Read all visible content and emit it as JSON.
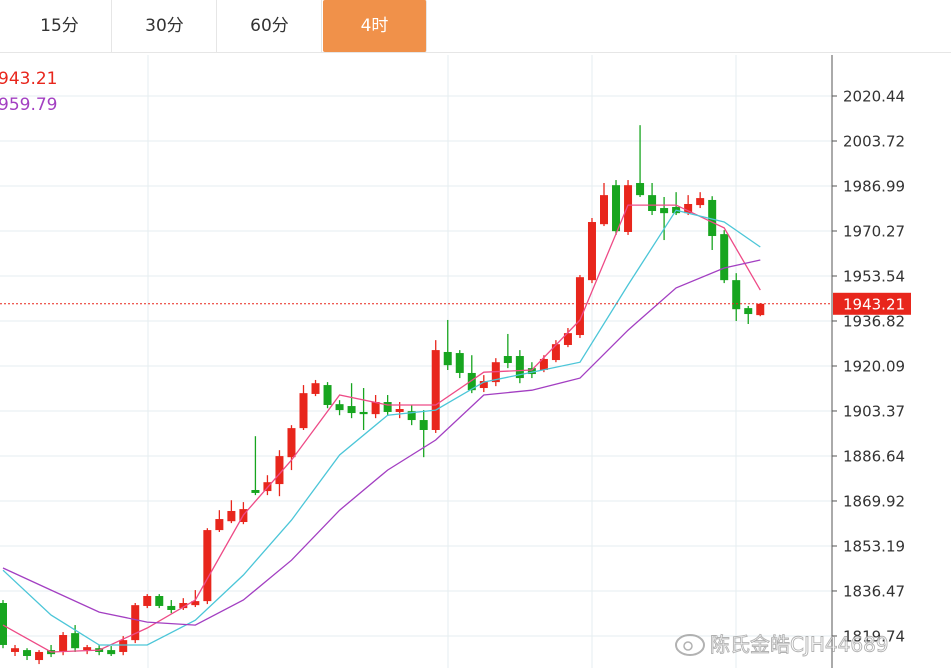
{
  "tabs": [
    {
      "label": "15分"
    },
    {
      "label": "30分"
    },
    {
      "label": "60分"
    },
    {
      "label": "4时",
      "active": true
    }
  ],
  "chart_data": {
    "type": "candlestick",
    "legend_texts": [
      {
        "text": "943.21",
        "color": "#e8261c"
      },
      {
        "text": "959.79",
        "color": "#a33fc2"
      }
    ],
    "up_color": "#e8261c",
    "down_color": "#17a51f",
    "open": [
      1832.0,
      1813.8,
      1814.5,
      1810.8,
      1814.5,
      1813.8,
      1820.8,
      1814.5,
      1815.2,
      1814.5,
      1813.8,
      1818.2,
      1830.9,
      1834.6,
      1830.9,
      1830.1,
      1831.2,
      1832.7,
      1859.1,
      1862.4,
      1862.1,
      1874.0,
      1873.6,
      1876.2,
      1886.2,
      1897.0,
      1909.7,
      1913.0,
      1905.9,
      1905.2,
      1903.0,
      1902.2,
      1906.7,
      1903.0,
      1903.3,
      1900.0,
      1896.3,
      1925.3,
      1924.9,
      1917.5,
      1911.9,
      1914.1,
      1923.8,
      1923.8,
      1919.3,
      1918.6,
      1922.3,
      1927.9,
      1931.6,
      1952.0,
      1972.8,
      1987.3,
      1969.9,
      1988.1,
      1983.6,
      1978.8,
      1979.2,
      1976.9,
      1979.9,
      1981.8,
      1969.1,
      1952.0,
      1941.6,
      1939.0
    ],
    "high": [
      1833.1,
      1816.4,
      1815.2,
      1814.5,
      1816.4,
      1821.2,
      1823.8,
      1816.4,
      1816.4,
      1816.0,
      1819.7,
      1832.0,
      1835.3,
      1835.3,
      1833.1,
      1833.8,
      1836.8,
      1859.8,
      1866.5,
      1870.2,
      1869.5,
      1894.0,
      1879.5,
      1888.8,
      1898.1,
      1913.0,
      1914.9,
      1914.1,
      1907.4,
      1913.7,
      1911.9,
      1909.3,
      1909.3,
      1906.7,
      1905.6,
      1903.7,
      1929.7,
      1937.2,
      1926.0,
      1924.1,
      1916.7,
      1923.0,
      1932.0,
      1926.0,
      1921.5,
      1924.1,
      1929.7,
      1934.2,
      1953.9,
      1975.1,
      1988.1,
      1989.2,
      1989.2,
      2009.6,
      1988.1,
      1982.9,
      1984.7,
      1983.6,
      1984.7,
      1983.2,
      1970.6,
      1954.6,
      1942.4,
      1943.5
    ],
    "low": [
      1815.2,
      1812.3,
      1810.8,
      1809.3,
      1811.9,
      1812.6,
      1813.8,
      1813.0,
      1812.6,
      1812.3,
      1812.6,
      1817.1,
      1830.1,
      1830.1,
      1828.2,
      1829.4,
      1830.5,
      1831.6,
      1858.4,
      1861.7,
      1861.3,
      1872.1,
      1872.1,
      1871.7,
      1881.4,
      1896.3,
      1908.9,
      1904.4,
      1901.8,
      1900.7,
      1896.3,
      1900.7,
      1901.5,
      1900.7,
      1898.1,
      1886.2,
      1895.2,
      1918.6,
      1915.6,
      1910.0,
      1910.4,
      1912.6,
      1919.3,
      1913.7,
      1915.6,
      1917.8,
      1921.5,
      1927.1,
      1930.5,
      1950.9,
      1972.1,
      1968.8,
      1968.8,
      1982.9,
      1976.2,
      1966.9,
      1976.2,
      1976.2,
      1978.8,
      1963.2,
      1950.9,
      1936.8,
      1935.7,
      1938.6
    ],
    "close": [
      1816.4,
      1815.2,
      1812.3,
      1813.8,
      1813.0,
      1820.1,
      1815.2,
      1815.6,
      1813.8,
      1813.0,
      1818.2,
      1831.2,
      1834.6,
      1830.9,
      1829.4,
      1832.0,
      1832.7,
      1859.1,
      1863.2,
      1866.2,
      1866.9,
      1872.9,
      1876.9,
      1886.6,
      1897.0,
      1910.0,
      1913.7,
      1905.6,
      1903.7,
      1902.6,
      1902.2,
      1906.7,
      1903.0,
      1904.1,
      1900.0,
      1896.3,
      1926.0,
      1920.4,
      1917.5,
      1911.1,
      1914.5,
      1921.5,
      1921.2,
      1915.6,
      1917.1,
      1922.7,
      1928.2,
      1932.3,
      1953.1,
      1973.6,
      1983.6,
      1970.2,
      1987.3,
      1983.6,
      1977.7,
      1976.9,
      1976.9,
      1980.3,
      1982.5,
      1968.4,
      1952.0,
      1941.2,
      1939.4,
      1943.2
    ],
    "overlays": [
      {
        "color": "#ee4b87",
        "x": [
          0,
          4,
          8,
          12,
          16,
          20,
          24,
          28,
          32,
          36,
          40,
          44,
          48,
          52,
          56,
          60,
          63
        ],
        "values": [
          1823.8,
          1813.8,
          1814.5,
          1822.7,
          1833.1,
          1864.7,
          1885.1,
          1909.3,
          1905.6,
          1905.6,
          1917.8,
          1918.6,
          1937.2,
          1979.9,
          1979.9,
          1971.4,
          1948.3
        ]
      },
      {
        "color": "#4cc6d8",
        "x": [
          0,
          4,
          8,
          12,
          16,
          20,
          24,
          28,
          32,
          36,
          40,
          44,
          48,
          52,
          56,
          60,
          63
        ],
        "values": [
          1844.2,
          1827.5,
          1816.4,
          1816.4,
          1825.6,
          1842.4,
          1862.8,
          1887.0,
          1901.8,
          1903.7,
          1914.1,
          1917.8,
          1921.5,
          1950.2,
          1978.0,
          1973.6,
          1964.3
        ]
      },
      {
        "color": "#a33fc2",
        "x": [
          0,
          4,
          8,
          12,
          16,
          20,
          24,
          28,
          32,
          36,
          40,
          44,
          48,
          52,
          56,
          60,
          63
        ],
        "values": [
          1845.0,
          1836.8,
          1828.6,
          1824.9,
          1823.8,
          1833.1,
          1847.9,
          1866.5,
          1881.4,
          1892.6,
          1909.3,
          1911.1,
          1915.6,
          1933.4,
          1949.1,
          1956.5,
          1959.5
        ]
      }
    ],
    "last_price": 1943.21,
    "ylim": [
      1807.84,
      2035.68
    ],
    "yticks": [
      2020.44,
      2003.72,
      1986.99,
      1970.27,
      1953.54,
      1936.82,
      1920.09,
      1903.37,
      1886.64,
      1869.92,
      1853.19,
      1836.47,
      1819.74
    ],
    "grid": true
  },
  "watermark": "陈氏金皓CJH44689"
}
